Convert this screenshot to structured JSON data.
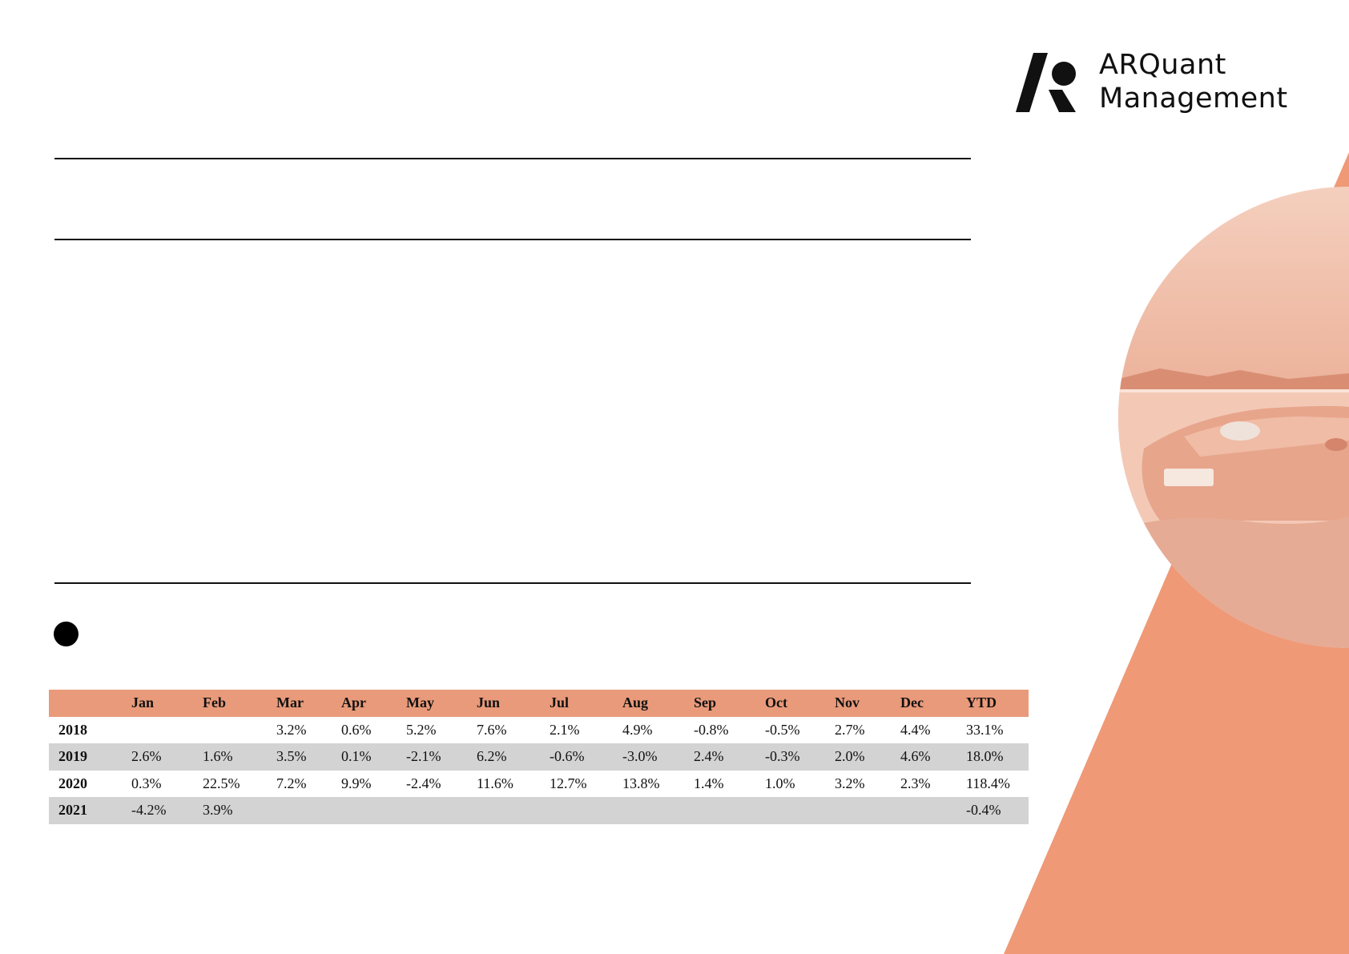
{
  "brand": {
    "name_line1": "ARQuant",
    "name_line2": "Management",
    "accent_color": "#ef9977"
  },
  "returns_table": {
    "columns": [
      "",
      "Jan",
      "Feb",
      "Mar",
      "Apr",
      "May",
      "Jun",
      "Jul",
      "Aug",
      "Sep",
      "Oct",
      "Nov",
      "Dec",
      "YTD"
    ],
    "rows": [
      {
        "year": "2018",
        "values": [
          "",
          "",
          "3.2%",
          "0.6%",
          "5.2%",
          "7.6%",
          "2.1%",
          "4.9%",
          "-0.8%",
          "-0.5%",
          "2.7%",
          "4.4%",
          "33.1%"
        ]
      },
      {
        "year": "2019",
        "values": [
          "2.6%",
          "1.6%",
          "3.5%",
          "0.1%",
          "-2.1%",
          "6.2%",
          "-0.6%",
          "-3.0%",
          "2.4%",
          "-0.3%",
          "2.0%",
          "4.6%",
          "18.0%"
        ]
      },
      {
        "year": "2020",
        "values": [
          "0.3%",
          "22.5%",
          "7.2%",
          "9.9%",
          "-2.4%",
          "11.6%",
          "12.7%",
          "13.8%",
          "1.4%",
          "1.0%",
          "3.2%",
          "2.3%",
          "118.4%"
        ]
      },
      {
        "year": "2021",
        "values": [
          "-4.2%",
          "3.9%",
          "",
          "",
          "",
          "",
          "",
          "",
          "",
          "",
          "",
          "",
          "-0.4%"
        ]
      }
    ],
    "header_color": "#e99a7a",
    "stripe_color": "#d3d3d3"
  }
}
